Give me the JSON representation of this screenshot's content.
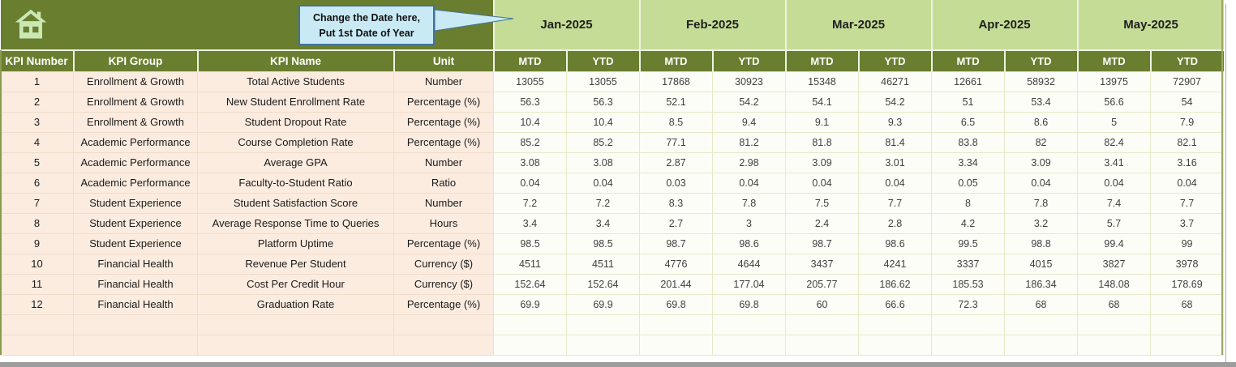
{
  "header": {
    "callout": {
      "line1": "Change the Date here,",
      "line2": "Put 1st Date of Year"
    },
    "months": [
      "Jan-2025",
      "Feb-2025",
      "Mar-2025",
      "Apr-2025",
      "May-2025"
    ],
    "sub_columns": [
      "MTD",
      "YTD"
    ],
    "left_columns": [
      "KPI Number",
      "KPI Group",
      "KPI Name",
      "Unit"
    ]
  },
  "table": {
    "rows": [
      {
        "kpi_number": "1",
        "kpi_group": "Enrollment & Growth",
        "kpi_name": "Total Active Students",
        "unit": "Number",
        "values": [
          "13055",
          "13055",
          "17868",
          "30923",
          "15348",
          "46271",
          "12661",
          "58932",
          "13975",
          "72907"
        ]
      },
      {
        "kpi_number": "2",
        "kpi_group": "Enrollment & Growth",
        "kpi_name": "New Student Enrollment Rate",
        "unit": "Percentage (%)",
        "values": [
          "56.3",
          "56.3",
          "52.1",
          "54.2",
          "54.1",
          "54.2",
          "51",
          "53.4",
          "56.6",
          "54"
        ]
      },
      {
        "kpi_number": "3",
        "kpi_group": "Enrollment & Growth",
        "kpi_name": "Student Dropout Rate",
        "unit": "Percentage (%)",
        "values": [
          "10.4",
          "10.4",
          "8.5",
          "9.4",
          "9.1",
          "9.3",
          "6.5",
          "8.6",
          "5",
          "7.9"
        ]
      },
      {
        "kpi_number": "4",
        "kpi_group": "Academic Performance",
        "kpi_name": "Course Completion Rate",
        "unit": "Percentage (%)",
        "values": [
          "85.2",
          "85.2",
          "77.1",
          "81.2",
          "81.8",
          "81.4",
          "83.8",
          "82",
          "82.4",
          "82.1"
        ]
      },
      {
        "kpi_number": "5",
        "kpi_group": "Academic Performance",
        "kpi_name": "Average GPA",
        "unit": "Number",
        "values": [
          "3.08",
          "3.08",
          "2.87",
          "2.98",
          "3.09",
          "3.01",
          "3.34",
          "3.09",
          "3.41",
          "3.16"
        ]
      },
      {
        "kpi_number": "6",
        "kpi_group": "Academic Performance",
        "kpi_name": "Faculty-to-Student Ratio",
        "unit": "Ratio",
        "values": [
          "0.04",
          "0.04",
          "0.03",
          "0.04",
          "0.04",
          "0.04",
          "0.05",
          "0.04",
          "0.04",
          "0.04"
        ]
      },
      {
        "kpi_number": "7",
        "kpi_group": "Student Experience",
        "kpi_name": "Student Satisfaction Score",
        "unit": "Number",
        "values": [
          "7.2",
          "7.2",
          "8.3",
          "7.8",
          "7.5",
          "7.7",
          "8",
          "7.8",
          "7.4",
          "7.7"
        ]
      },
      {
        "kpi_number": "8",
        "kpi_group": "Student Experience",
        "kpi_name": "Average Response Time to Queries",
        "unit": "Hours",
        "values": [
          "3.4",
          "3.4",
          "2.7",
          "3",
          "2.4",
          "2.8",
          "4.2",
          "3.2",
          "5.7",
          "3.7"
        ]
      },
      {
        "kpi_number": "9",
        "kpi_group": "Student Experience",
        "kpi_name": "Platform Uptime",
        "unit": "Percentage (%)",
        "values": [
          "98.5",
          "98.5",
          "98.7",
          "98.6",
          "98.7",
          "98.6",
          "99.5",
          "98.8",
          "99.4",
          "99"
        ]
      },
      {
        "kpi_number": "10",
        "kpi_group": "Financial Health",
        "kpi_name": "Revenue Per Student",
        "unit": "Currency ($)",
        "values": [
          "4511",
          "4511",
          "4776",
          "4644",
          "3437",
          "4241",
          "3337",
          "4015",
          "3827",
          "3978"
        ]
      },
      {
        "kpi_number": "11",
        "kpi_group": "Financial Health",
        "kpi_name": "Cost Per Credit Hour",
        "unit": "Currency ($)",
        "values": [
          "152.64",
          "152.64",
          "201.44",
          "177.04",
          "205.77",
          "186.62",
          "185.53",
          "186.34",
          "148.08",
          "178.69"
        ]
      },
      {
        "kpi_number": "12",
        "kpi_group": "Financial Health",
        "kpi_name": "Graduation Rate",
        "unit": "Percentage (%)",
        "values": [
          "69.9",
          "69.9",
          "69.8",
          "69.8",
          "60",
          "66.6",
          "72.3",
          "68",
          "68",
          "68"
        ]
      }
    ],
    "empty_row_count": 2
  },
  "colors": {
    "dark_olive": "#6a7e2f",
    "light_green": "#c5dc96",
    "row_peach": "#fcece0",
    "callout_fill": "#c9eaf5",
    "callout_border": "#41719c",
    "home_icon_green": "#c9e8b4"
  }
}
